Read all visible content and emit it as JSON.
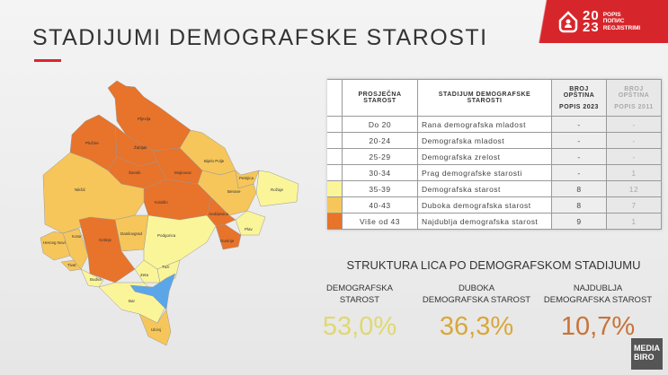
{
  "title": "STADIJUMI DEMOGRAFSKE STAROSTI",
  "logo": {
    "year_top": "20",
    "year_bottom": "23",
    "lines": [
      "POPIS",
      "ПОПИС",
      "REGJISTRIMI"
    ]
  },
  "table": {
    "headers": [
      "PROSJEČNA STAROST",
      "STADIJUM DEMOGRAFSKE STAROSTI",
      "BROJ OPŠTINA",
      "POPIS 2023",
      "BROJ OPŠTINA",
      "POPIS 2011"
    ],
    "rows": [
      {
        "color": "#ffffff",
        "age": "Do 20",
        "stage": "Rana demografska mladost",
        "n2023": "-",
        "n2011": "-"
      },
      {
        "color": "#ffffff",
        "age": "20-24",
        "stage": "Demografska mladost",
        "n2023": "-",
        "n2011": "-"
      },
      {
        "color": "#ffffff",
        "age": "25-29",
        "stage": "Demografska zrelost",
        "n2023": "-",
        "n2011": "-"
      },
      {
        "color": "#ffffff",
        "age": "30-34",
        "stage": "Prag demografske starosti",
        "n2023": "-",
        "n2011": "1"
      },
      {
        "color": "#fbf59a",
        "age": "35-39",
        "stage": "Demografska starost",
        "n2023": "8",
        "n2011": "12"
      },
      {
        "color": "#f6c65a",
        "age": "40-43",
        "stage": "Duboka demografska starost",
        "n2023": "8",
        "n2011": "7"
      },
      {
        "color": "#e8732a",
        "age": "Više od 43",
        "stage": "Najdublja demografska starost",
        "n2023": "9",
        "n2011": "1"
      }
    ]
  },
  "structure": {
    "title": "STRUKTURA LICA PO DEMOGRAFSKOM STADIJUMU",
    "items": [
      {
        "label1": "DEMOGRAFSKA",
        "label2": "STAROST",
        "value": "53,0%",
        "color": "#e0d870"
      },
      {
        "label1": "DUBOKA",
        "label2": "DEMOGRAFSKA STAROST",
        "value": "36,3%",
        "color": "#d9a83a"
      },
      {
        "label1": "NAJDUBLJA",
        "label2": "DEMOGRAFSKA STAROST",
        "value": "10,7%",
        "color": "#c8733a"
      }
    ]
  },
  "map": {
    "colors": {
      "light": "#fbf59a",
      "mid": "#f6c65a",
      "dark": "#e8732a",
      "lake": "#5aa6e8"
    },
    "labels": [
      "Pljevlja",
      "Plužine",
      "Žabljak",
      "Šavnik",
      "Mojkovac",
      "Bijelo Polje",
      "Petnjica",
      "Rožaje",
      "Berane",
      "Kolašin",
      "Andrijevica",
      "Plav",
      "Gusinje",
      "Nikšić",
      "Danilovgrad",
      "Podgorica",
      "Cetinje",
      "Kotor",
      "Herceg Novi",
      "Tivat",
      "Budva",
      "Zeta",
      "Tuzi",
      "Bar",
      "Ulcinj"
    ]
  },
  "watermark": {
    "line1": "MEDIA",
    "line2": "BIRO"
  }
}
